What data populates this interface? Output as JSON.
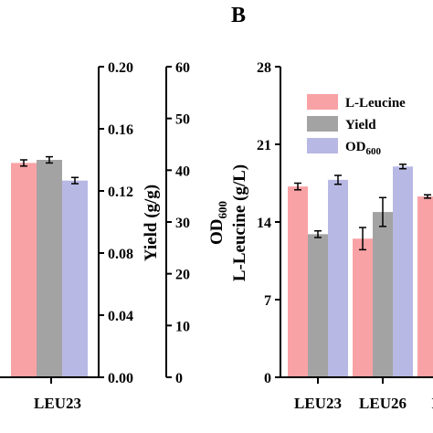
{
  "panel_label": "B",
  "colors": {
    "l_leucine": "#f9a2a5",
    "yield": "#a3a3a3",
    "od600": "#b8b8e4"
  },
  "chart_data": [
    {
      "type": "bar",
      "panel": "",
      "categories": [
        "LEU23"
      ],
      "axes": [
        {
          "name": "yield",
          "label": "Yield (g/g)",
          "range": [
            0,
            0.2
          ],
          "ticks": [
            "0.00",
            "0.04",
            "0.08",
            "0.12",
            "0.16",
            "0.20"
          ]
        },
        {
          "name": "od600",
          "label_main": "OD",
          "label_sub": "600",
          "range": [
            0,
            60
          ],
          "ticks": [
            "0",
            "10",
            "20",
            "30",
            "40",
            "50",
            "60"
          ]
        }
      ],
      "series": [
        {
          "name": "L-Leucine",
          "values": [
            0.138
          ],
          "errors": [
            0.002
          ],
          "axis": "yield"
        },
        {
          "name": "Yield",
          "values": [
            0.14
          ],
          "errors": [
            0.002
          ],
          "axis": "yield"
        },
        {
          "name": "OD600",
          "values": [
            38.0
          ],
          "errors": [
            0.6
          ],
          "axis": "od600"
        }
      ]
    },
    {
      "type": "bar",
      "panel": "B",
      "categories": [
        "LEU23",
        "LEU26",
        "LEU"
      ],
      "ylabel": "L-Leucine (g/L)",
      "ylim": [
        0,
        28
      ],
      "yticks": [
        "0",
        "7",
        "14",
        "21",
        "28"
      ],
      "legend": {
        "placement": "top-left",
        "entries": [
          {
            "main": "L-Leucine",
            "sub": ""
          },
          {
            "main": "Yield",
            "sub": ""
          },
          {
            "main": "OD",
            "sub": "600"
          }
        ]
      },
      "series": [
        {
          "name": "L-Leucine",
          "values": [
            17.2,
            12.5,
            16.3
          ],
          "errors": [
            0.3,
            1.0,
            0.15
          ]
        },
        {
          "name": "Yield",
          "values": [
            12.9,
            14.9,
            null
          ],
          "errors": [
            0.3,
            1.3,
            null
          ]
        },
        {
          "name": "OD600",
          "values": [
            17.8,
            19.0,
            null
          ],
          "errors": [
            0.4,
            0.2,
            null
          ]
        }
      ]
    }
  ]
}
